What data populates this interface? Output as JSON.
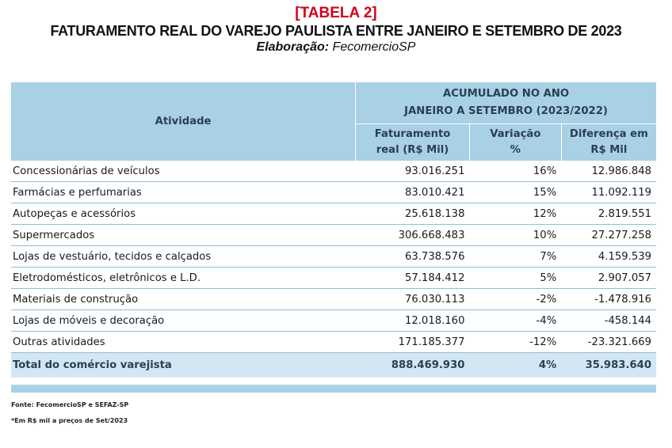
{
  "header": {
    "tag": "[TABELA 2]",
    "title": "FATURAMENTO REAL DO VAREJO PAULISTA ENTRE JANEIRO E SETEMBRO DE 2023",
    "subtitle_label": "Elaboração:",
    "subtitle_value": " FecomercioSP"
  },
  "table": {
    "col_activity": "Atividade",
    "group_line1": "ACUMULADO NO ANO",
    "group_line2": "JANEIRO A SETEMBRO (2023/2022)",
    "col1_line1": "Faturamento",
    "col1_line2": "real (R$ Mil)",
    "col2_line1": "Variação",
    "col2_line2": "%",
    "col3_line1": "Diferença em",
    "col3_line2": "R$ Mil",
    "rows": [
      {
        "name": "Concessionárias de veículos",
        "revenue": "93.016.251",
        "change": "16%",
        "diff": "12.986.848"
      },
      {
        "name": "Farmácias e perfumarias",
        "revenue": "83.010.421",
        "change": "15%",
        "diff": "11.092.119"
      },
      {
        "name": "Autopeças e acessórios",
        "revenue": "25.618.138",
        "change": "12%",
        "diff": "2.819.551"
      },
      {
        "name": "Supermercados",
        "revenue": "306.668.483",
        "change": "10%",
        "diff": "27.277.258"
      },
      {
        "name": "Lojas de vestuário, tecidos e calçados",
        "revenue": "63.738.576",
        "change": "7%",
        "diff": "4.159.539"
      },
      {
        "name": "Eletrodomésticos, eletrônicos e L.D.",
        "revenue": "57.184.412",
        "change": "5%",
        "diff": "2.907.057"
      },
      {
        "name": "Materiais de construção",
        "revenue": "76.030.113",
        "change": "-2%",
        "diff": "-1.478.916"
      },
      {
        "name": "Lojas de móveis e decoração",
        "revenue": "12.018.160",
        "change": "-4%",
        "diff": "-458.144"
      },
      {
        "name": "Outras atividades",
        "revenue": "171.185.377",
        "change": "-12%",
        "diff": "-23.321.669"
      }
    ],
    "total": {
      "name": "Total do comércio varejista",
      "revenue": "888.469.930",
      "change": "4%",
      "diff": "35.983.640"
    }
  },
  "notes": {
    "source": "Fonte: FecomercioSP e SEFAZ-SP",
    "footnote": "*Em R$ mil a preços de Set/2023"
  }
}
